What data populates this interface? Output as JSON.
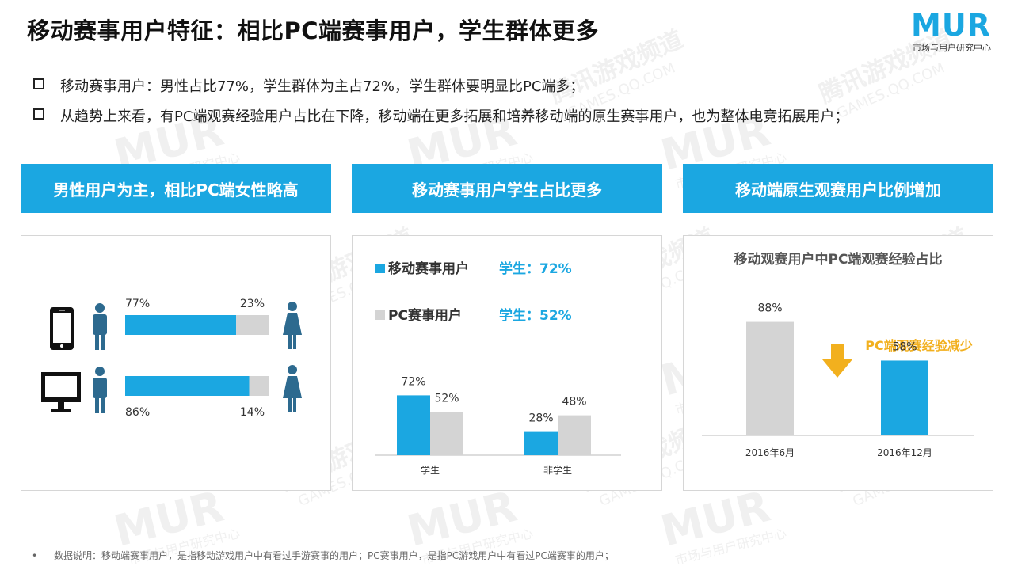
{
  "header": {
    "title": "移动赛事用户特征：相比PC端赛事用户，学生群体更多",
    "logo_text": "MUR",
    "logo_subtitle": "市场与用户研究中心"
  },
  "bullets": [
    "移动赛事用户：男性占比77%，学生群体为主占72%，学生群体要明显比PC端多；",
    "从趋势上来看，有PC端观赛经验用户占比在下降，移动端在更多拓展和培养移动端的原生赛事用户，也为整体电竞拓展用户；"
  ],
  "section_headers": [
    "男性用户为主，相比PC端女性略高",
    "移动赛事用户学生占比更多",
    "移动端原生观赛用户比例增加"
  ],
  "footnote": "数据说明：移动端赛事用户，是指移动游戏用户中有看过手游赛事的用户；PC赛事用户，是指PC游戏用户中有看过PC端赛事的用户；",
  "watermarks": {
    "mur_text": "MUR",
    "mur_sub": "市场与用户研究中心",
    "tencent_text": "腾讯游戏频道",
    "tencent_sub": "GAMES.QQ.COM"
  },
  "colors": {
    "accent": "#1ba7e1",
    "gray_bar": "#d4d4d4",
    "title_gold": "#f2b01e",
    "text": "#333333"
  },
  "icons": [
    "phone-icon",
    "monitor-icon",
    "male-icon",
    "female-icon",
    "down-arrow-icon"
  ],
  "chart_data": [
    {
      "type": "bar",
      "orientation": "horizontal-stacked",
      "categories": [
        "移动端",
        "PC端"
      ],
      "series": [
        {
          "name": "男性",
          "values": [
            77,
            86
          ],
          "labels": [
            "77%",
            "86%"
          ]
        },
        {
          "name": "女性",
          "values": [
            23,
            14
          ],
          "labels": [
            "23%",
            "14%"
          ]
        }
      ],
      "xlim": [
        0,
        100
      ]
    },
    {
      "type": "bar",
      "categories": [
        "学生",
        "非学生"
      ],
      "series": [
        {
          "name": "移动赛事用户",
          "values": [
            72,
            28
          ],
          "labels": [
            "72%",
            "28%"
          ]
        },
        {
          "name": "PC赛事用户",
          "values": [
            52,
            48
          ],
          "labels": [
            "52%",
            "48%"
          ]
        }
      ],
      "legend": [
        {
          "name": "移动赛事用户",
          "note": "学生：72%"
        },
        {
          "name": "PC赛事用户",
          "note": "学生：52%"
        }
      ],
      "ylim": [
        0,
        100
      ]
    },
    {
      "type": "bar",
      "title": "移动观赛用户中PC端观赛经验占比",
      "categories": [
        "2016年6月",
        "2016年12月"
      ],
      "values": [
        88,
        58
      ],
      "labels": [
        "88%",
        "58%"
      ],
      "annotation": "PC端观赛经验减少",
      "ylim": [
        0,
        100
      ]
    }
  ]
}
